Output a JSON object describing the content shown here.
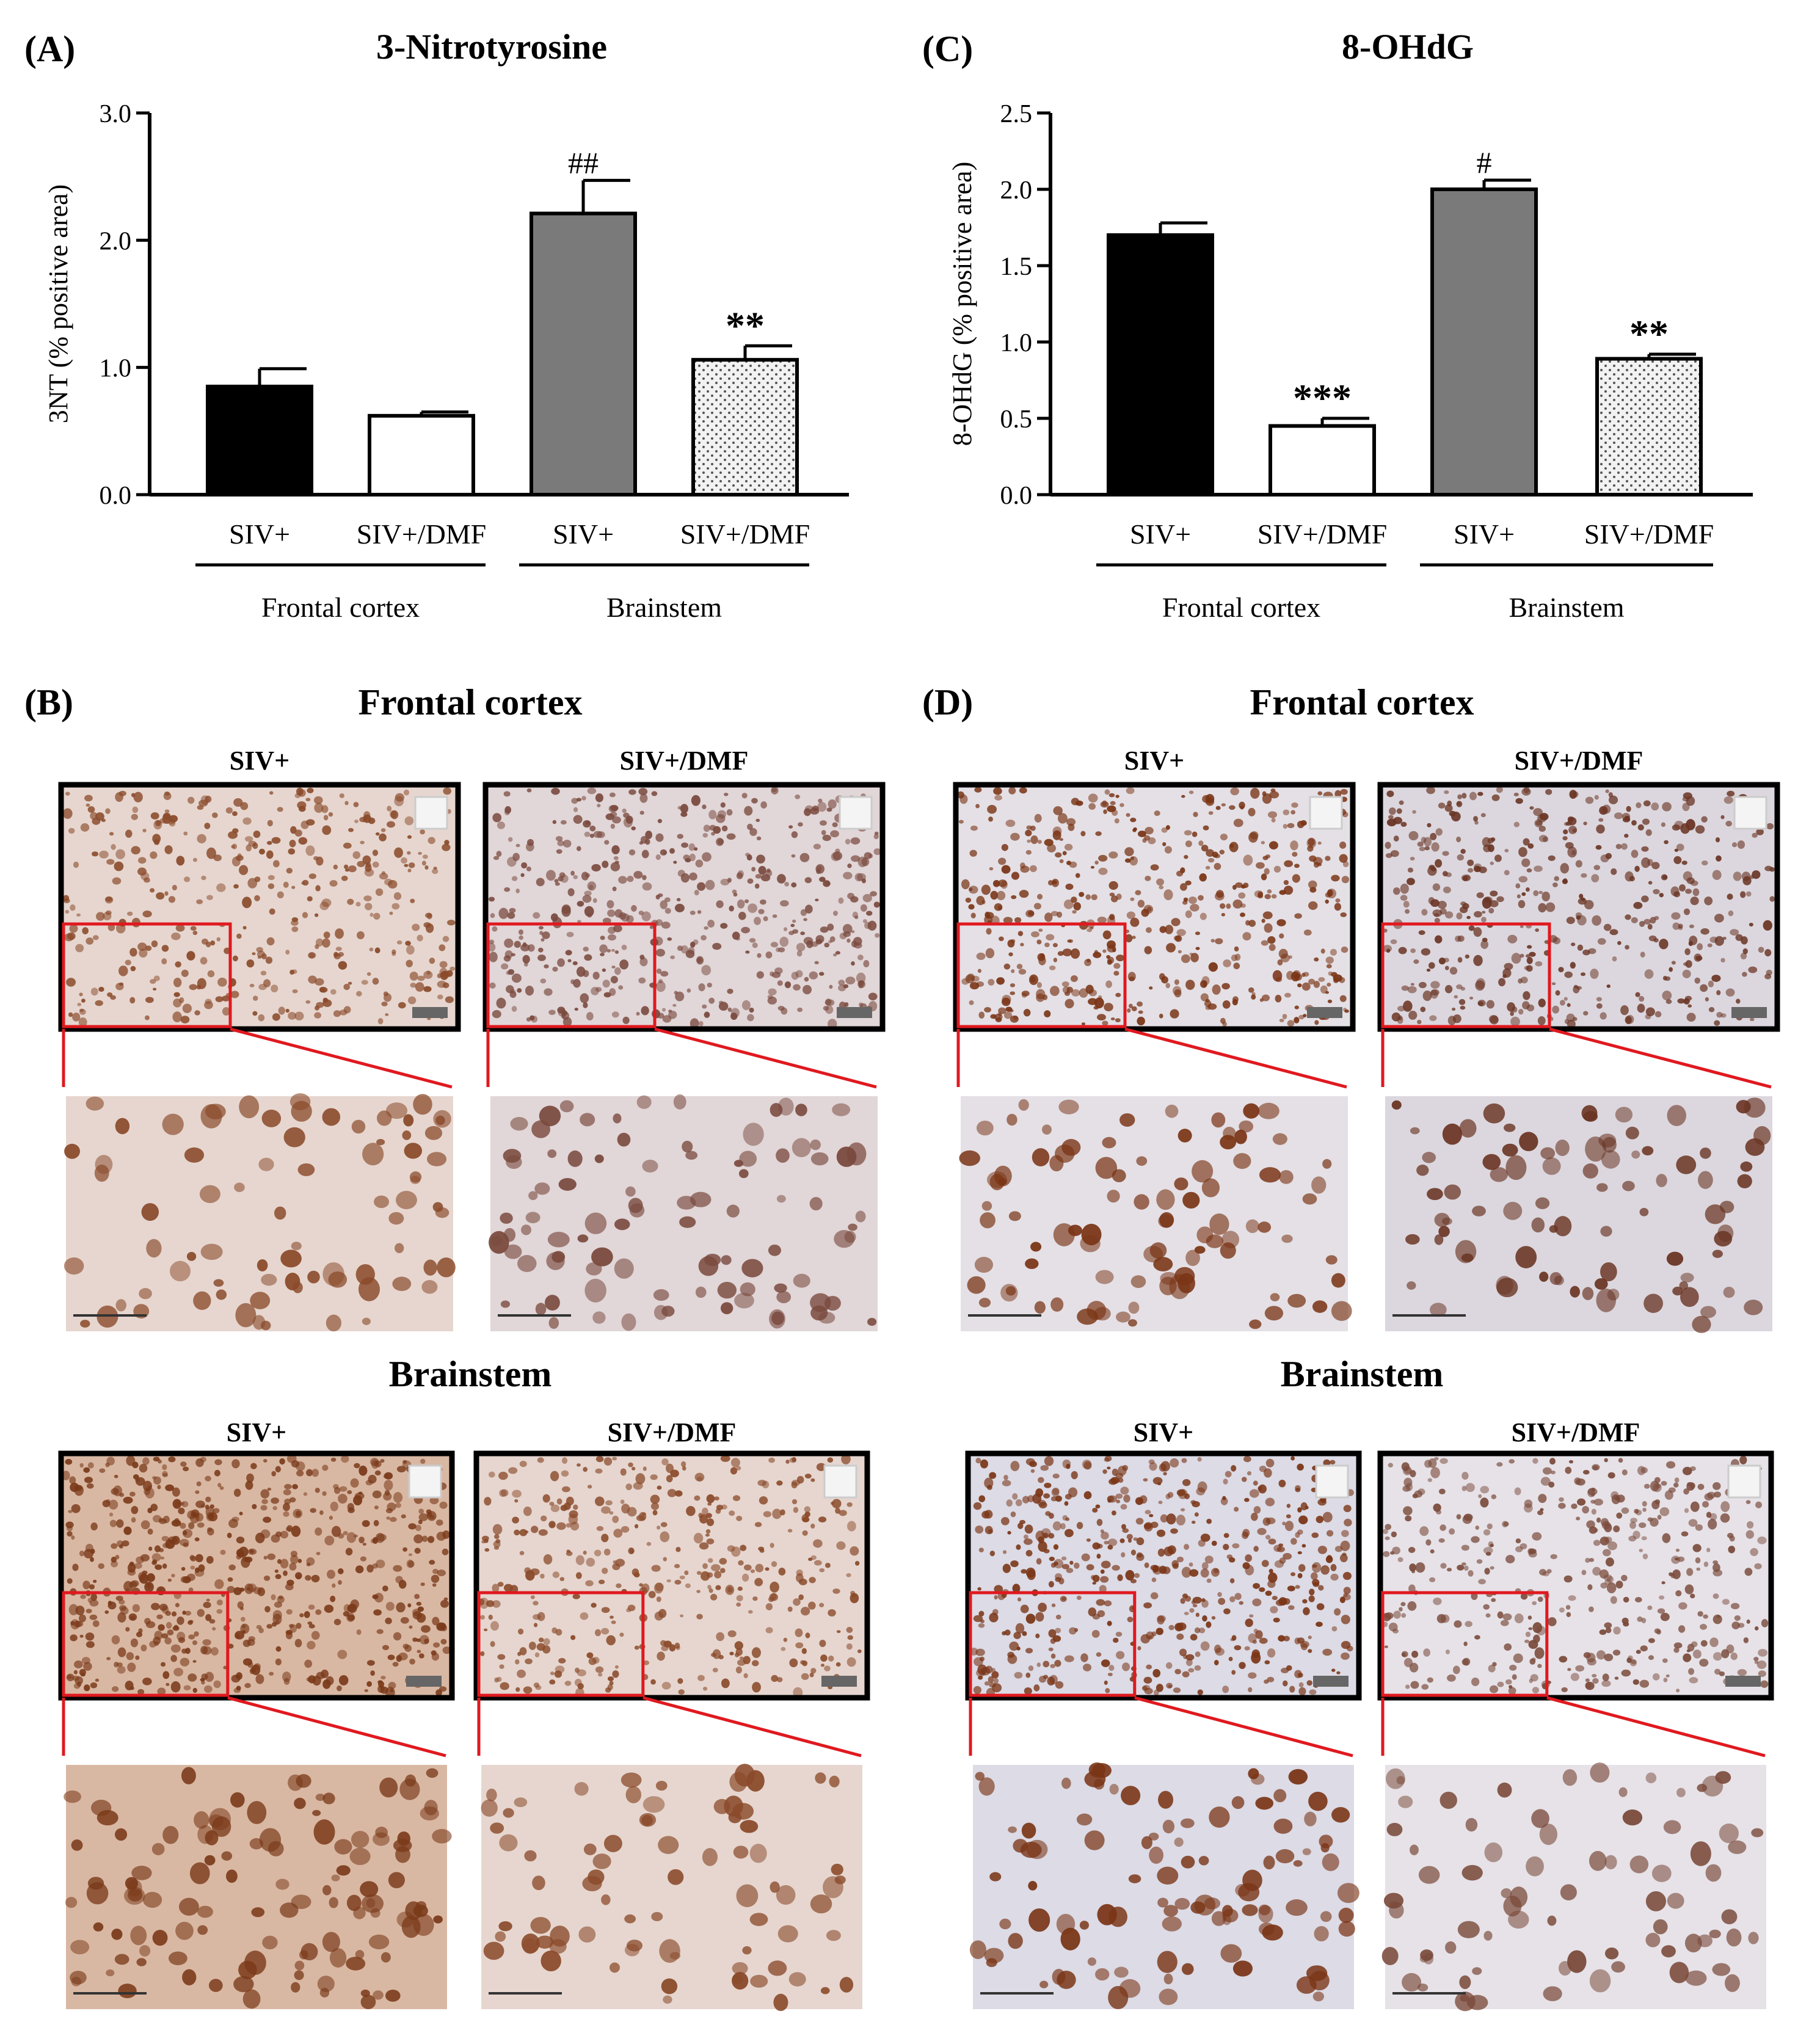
{
  "panels": {
    "A": {
      "letter": "(A)",
      "chart_data": {
        "type": "bar",
        "title": "3-Nitrotyrosine",
        "ylabel": "3NT (% positive area)",
        "ylim": [
          0,
          3.0
        ],
        "y_ticks": [
          "0.0",
          "1.0",
          "2.0",
          "3.0"
        ],
        "y_tick_values": [
          0,
          1,
          2,
          3
        ],
        "categories": [
          "SIV+",
          "SIV+/DMF",
          "SIV+",
          "SIV+/DMF"
        ],
        "groups": [
          "Frontal cortex",
          "Brainstem"
        ],
        "values": [
          0.85,
          0.62,
          2.21,
          1.06
        ],
        "errors": [
          0.14,
          0.03,
          0.26,
          0.11
        ],
        "fills": [
          "black",
          "white",
          "gray",
          "dotted"
        ],
        "annotations": [
          "",
          "",
          "##",
          "**"
        ],
        "grid": false
      }
    },
    "C": {
      "letter": "(C)",
      "chart_data": {
        "type": "bar",
        "title": "8-OHdG",
        "ylabel": "8-OHdG (% positive area)",
        "ylim": [
          0,
          2.5
        ],
        "y_ticks": [
          "0.0",
          "0.5",
          "1.0",
          "1.5",
          "2.0",
          "2.5"
        ],
        "y_tick_values": [
          0,
          0.5,
          1.0,
          1.5,
          2.0,
          2.5
        ],
        "categories": [
          "SIV+",
          "SIV+/DMF",
          "SIV+",
          "SIV+/DMF"
        ],
        "groups": [
          "Frontal cortex",
          "Brainstem"
        ],
        "values": [
          1.7,
          0.45,
          2.0,
          0.89
        ],
        "errors": [
          0.08,
          0.05,
          0.06,
          0.03
        ],
        "fills": [
          "black",
          "white",
          "gray",
          "dotted"
        ],
        "annotations": [
          "",
          "***",
          "#",
          "**"
        ],
        "grid": false
      }
    },
    "B": {
      "letter": "(B)",
      "sections": [
        {
          "title": "Frontal cortex",
          "left_label": "SIV+",
          "right_label": "SIV+/DMF"
        },
        {
          "title": "Brainstem",
          "left_label": "SIV+",
          "right_label": "SIV+/DMF"
        }
      ]
    },
    "D": {
      "letter": "(D)",
      "sections": [
        {
          "title": "Frontal cortex",
          "left_label": "SIV+",
          "right_label": "SIV+/DMF"
        },
        {
          "title": "Brainstem",
          "left_label": "SIV+",
          "right_label": "SIV+/DMF"
        }
      ]
    }
  },
  "colors": {
    "bar_black": "#000000",
    "bar_gray": "#7a7a7a",
    "bar_dotted_bg": "#eeeeee",
    "zoom_box": "#e0191f",
    "stain_3nt_light": "#e6d6cf",
    "stain_3nt_heavy": "#d9b8a3",
    "stain_8ohdg": "#dcd7de",
    "nucleus_brown": "#7a3516"
  }
}
